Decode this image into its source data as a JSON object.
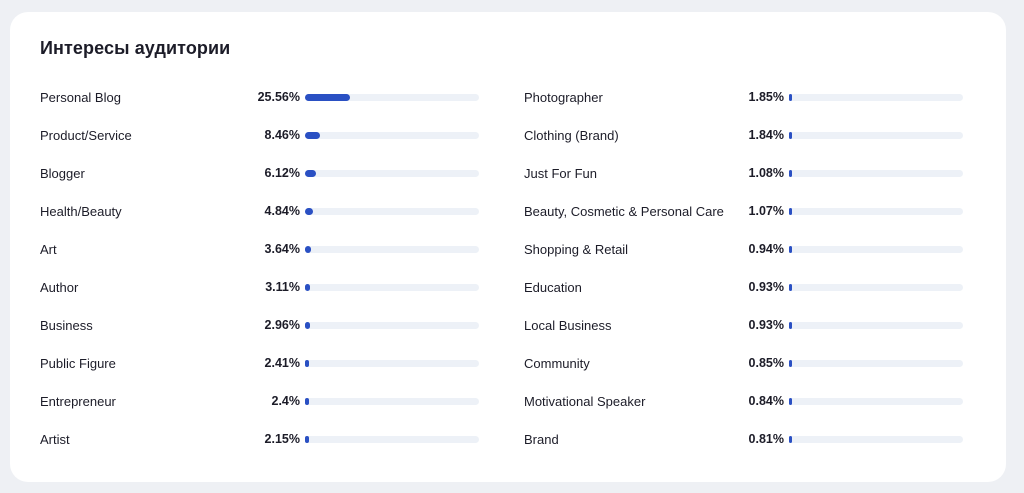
{
  "card": {
    "title": "Интересы аудитории"
  },
  "accent_color": "#2a50c3",
  "track_color": "#edf1f7",
  "left_items": [
    {
      "label": "Personal Blog",
      "value": "25.56%",
      "percent": 25.56
    },
    {
      "label": "Product/Service",
      "value": "8.46%",
      "percent": 8.46
    },
    {
      "label": "Blogger",
      "value": "6.12%",
      "percent": 6.12
    },
    {
      "label": "Health/Beauty",
      "value": "4.84%",
      "percent": 4.84
    },
    {
      "label": "Art",
      "value": "3.64%",
      "percent": 3.64
    },
    {
      "label": "Author",
      "value": "3.11%",
      "percent": 3.11
    },
    {
      "label": "Business",
      "value": "2.96%",
      "percent": 2.96
    },
    {
      "label": "Public Figure",
      "value": "2.41%",
      "percent": 2.41
    },
    {
      "label": "Entrepreneur",
      "value": "2.4%",
      "percent": 2.4
    },
    {
      "label": "Artist",
      "value": "2.15%",
      "percent": 2.15
    }
  ],
  "right_items": [
    {
      "label": "Photographer",
      "value": "1.85%",
      "percent": 1.85
    },
    {
      "label": "Clothing (Brand)",
      "value": "1.84%",
      "percent": 1.84
    },
    {
      "label": "Just For Fun",
      "value": "1.08%",
      "percent": 1.08
    },
    {
      "label": "Beauty, Cosmetic & Personal Care",
      "value": "1.07%",
      "percent": 1.07
    },
    {
      "label": "Shopping & Retail",
      "value": "0.94%",
      "percent": 0.94
    },
    {
      "label": "Education",
      "value": "0.93%",
      "percent": 0.93
    },
    {
      "label": "Local Business",
      "value": "0.93%",
      "percent": 0.93
    },
    {
      "label": "Community",
      "value": "0.85%",
      "percent": 0.85
    },
    {
      "label": "Motivational Speaker",
      "value": "0.84%",
      "percent": 0.84
    },
    {
      "label": "Brand",
      "value": "0.81%",
      "percent": 0.81
    }
  ]
}
